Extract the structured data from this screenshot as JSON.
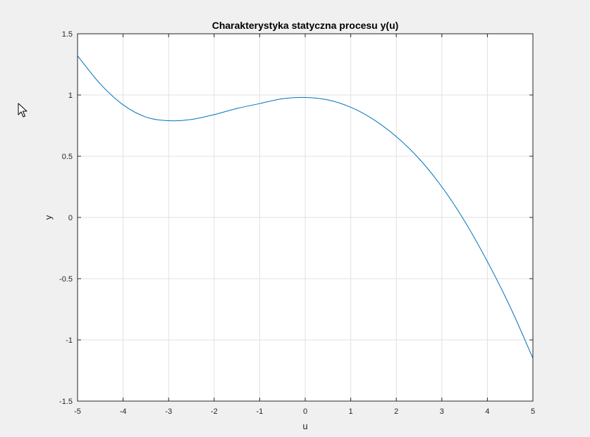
{
  "chart_data": {
    "type": "line",
    "title": "Charakterystyka statyczna procesu y(u)",
    "xlabel": "u",
    "ylabel": "y",
    "xlim": [
      -5,
      5
    ],
    "ylim": [
      -1.5,
      1.5
    ],
    "xticks": [
      "-5",
      "-4",
      "-3",
      "-2",
      "-1",
      "0",
      "1",
      "2",
      "3",
      "4",
      "5"
    ],
    "yticks": [
      "-1.5",
      "-1",
      "-0.5",
      "0",
      "0.5",
      "1",
      "1.5"
    ],
    "grid": true,
    "series": [
      {
        "color": "#0072bd",
        "x": [
          -5,
          -4.5,
          -4,
          -3.5,
          -3,
          -2.5,
          -2,
          -1.5,
          -1,
          -0.5,
          0,
          0.5,
          1,
          1.5,
          2,
          2.5,
          3,
          3.5,
          4,
          4.5,
          5
        ],
        "y": [
          1.32,
          1.09,
          0.92,
          0.82,
          0.79,
          0.8,
          0.84,
          0.89,
          0.93,
          0.97,
          0.98,
          0.96,
          0.9,
          0.8,
          0.66,
          0.48,
          0.25,
          -0.03,
          -0.36,
          -0.73,
          -1.15
        ]
      }
    ]
  },
  "colors": {
    "figure_background": "#f0f0f0",
    "axes_background": "#ffffff",
    "grid": "#e0e0e0",
    "axis": "#262626",
    "line": "#0072bd"
  },
  "overlay": {
    "cursor_icon": "mouse-pointer-icon"
  }
}
